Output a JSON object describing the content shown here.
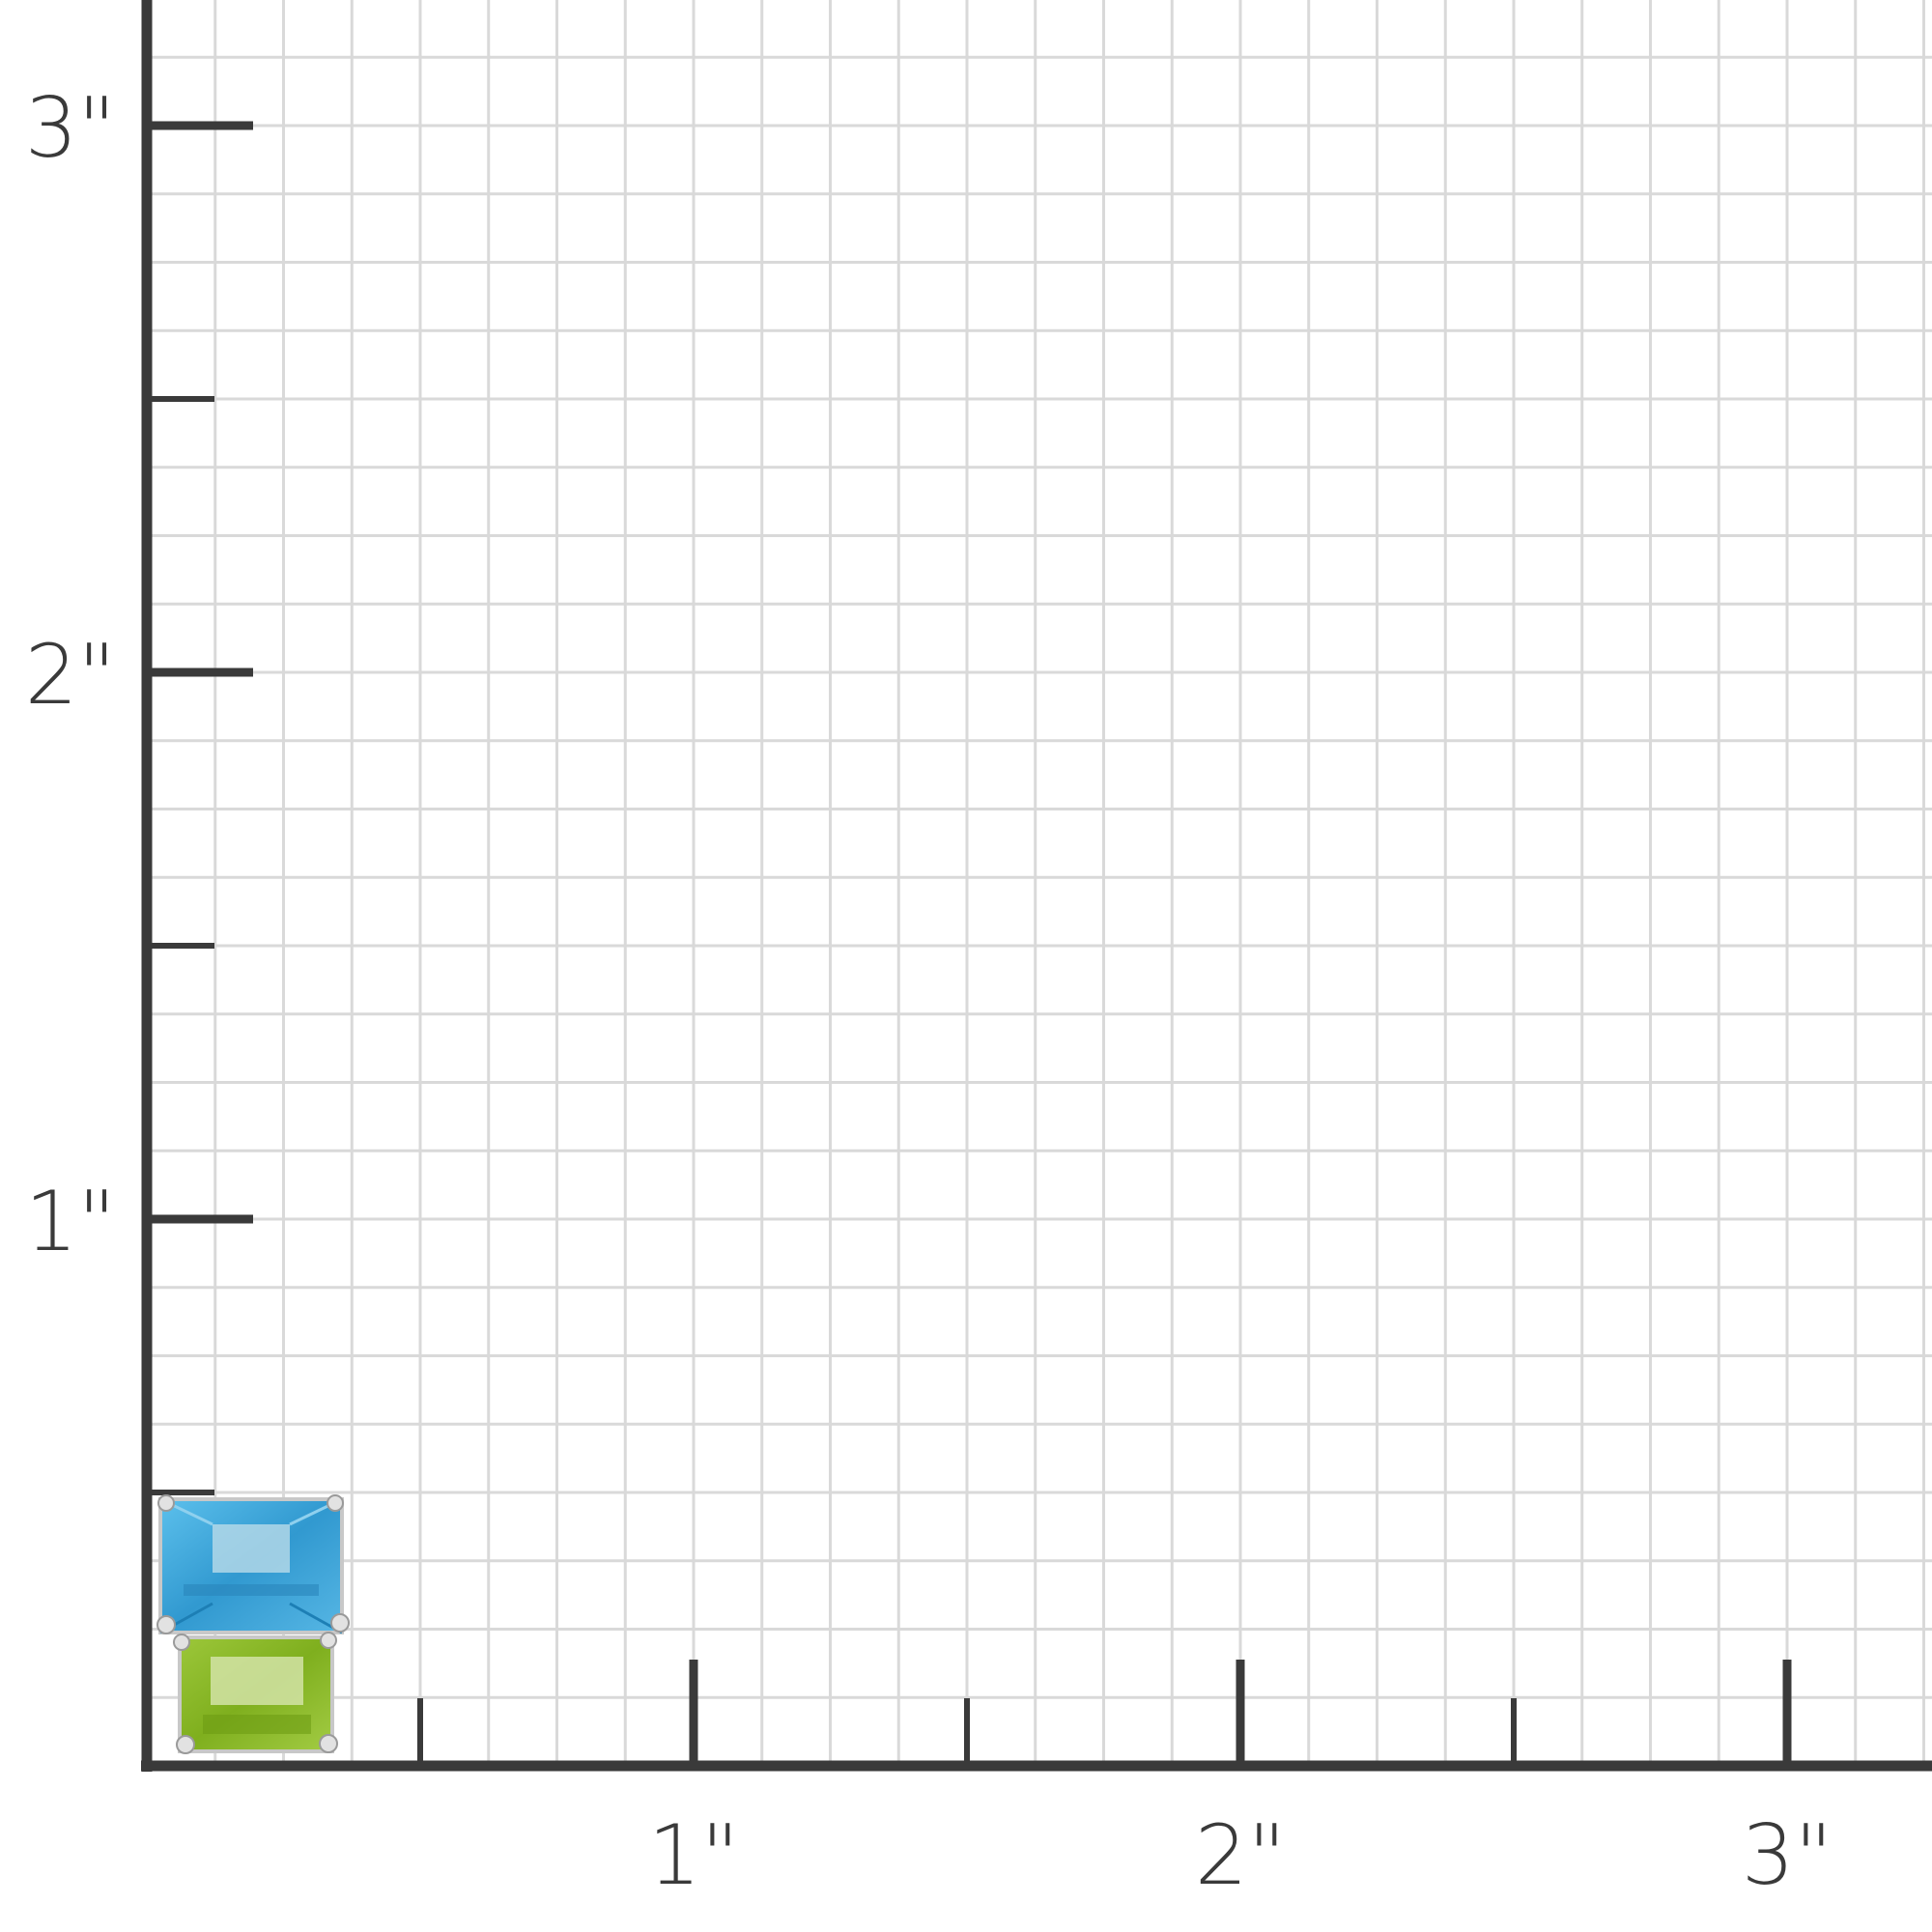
{
  "unit": "inch",
  "grid": {
    "subdivisions_per_inch": 8,
    "line_color": "#d9d9d9",
    "axis_color": "#3a3a3a"
  },
  "x_axis": {
    "ticks": [
      {
        "value": 1,
        "label": "1\""
      },
      {
        "value": 2,
        "label": "2\""
      },
      {
        "value": 3,
        "label": "3\""
      }
    ]
  },
  "y_axis": {
    "ticks": [
      {
        "value": 1,
        "label": "1\""
      },
      {
        "value": 2,
        "label": "2\""
      },
      {
        "value": 3,
        "label": "3\""
      }
    ]
  },
  "product": {
    "stones": [
      {
        "name": "blue-topaz",
        "color": "#3fa6d8"
      },
      {
        "name": "peridot",
        "color": "#8cbb2a"
      }
    ],
    "metal_color": "#d8d8d8"
  }
}
